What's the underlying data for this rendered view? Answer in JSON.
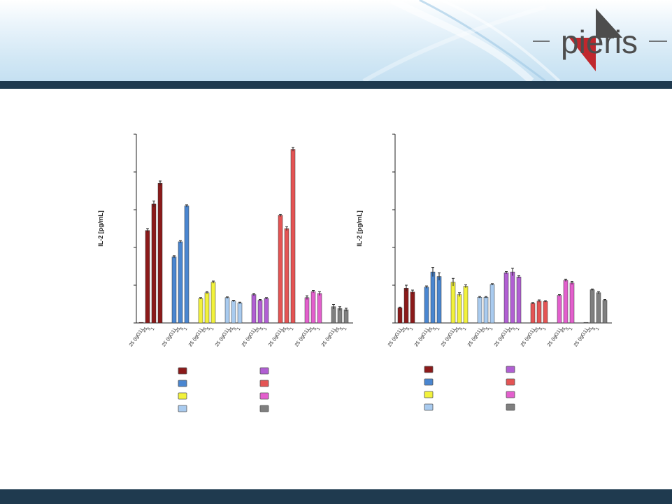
{
  "header": {
    "brand": "pieris",
    "colors": {
      "banner": "#d3e8f5",
      "dark_bar": "#1f3a4f",
      "logo_red": "#c0272d",
      "logo_gray": "#4d4d4d"
    }
  },
  "chart_data": [
    {
      "type": "bar",
      "title": "",
      "xlabel": "",
      "ylabel": "IL-2 [pg/mL]",
      "ylim": [
        0,
        5
      ],
      "y_ticks_labeled": false,
      "grid": false,
      "error_bars": true,
      "tick_label_groups": [
        "25 (IgG1)",
        "25 (IgG1)",
        "25 (IgG1)",
        "25 (IgG1)",
        "25 (IgG1)",
        "25 (IgG1)",
        "25 (IgG1)",
        "25 (IgG1)"
      ],
      "tick_label_sub": [
        "25",
        "5",
        "1",
        ".2",
        ".0 ",
        "8"
      ],
      "groups": [
        {
          "color": "#8b1a1a",
          "values": [
            0.0,
            2.45,
            3.15,
            3.7
          ],
          "errors": [
            0,
            0.05,
            0.08,
            0.06
          ]
        },
        {
          "color": "#4a86d0",
          "values": [
            1.75,
            2.15,
            3.1
          ],
          "errors": [
            0.03,
            0.03,
            0.03
          ]
        },
        {
          "color": "#f2f23c",
          "values": [
            0.65,
            0.8,
            1.08
          ],
          "errors": [
            0.02,
            0.03,
            0.03
          ]
        },
        {
          "color": "#a9cbef",
          "values": [
            0.67,
            0.58,
            0.53
          ],
          "errors": [
            0.02,
            0.02,
            0.02
          ]
        },
        {
          "color": "#b15fd3",
          "values": [
            0.75,
            0.6,
            0.65
          ],
          "errors": [
            0.03,
            0.02,
            0.02
          ]
        },
        {
          "color": "#e45454",
          "values": [
            2.85,
            2.5,
            4.6
          ],
          "errors": [
            0.03,
            0.05,
            0.05
          ]
        },
        {
          "color": "#e35fcd",
          "values": [
            0.67,
            0.83,
            0.78
          ],
          "errors": [
            0.05,
            0.03,
            0.05
          ]
        },
        {
          "color": "#7f7f7f",
          "values": [
            0.43,
            0.38,
            0.35
          ],
          "errors": [
            0.06,
            0.05,
            0.04
          ]
        }
      ],
      "legend_placement": "bottom, two columns"
    },
    {
      "type": "bar",
      "title": "",
      "xlabel": "",
      "ylabel": "IL-2 [pg/mL]",
      "ylim": [
        0,
        5
      ],
      "y_ticks_labeled": false,
      "grid": false,
      "error_bars": true,
      "tick_label_groups": [
        "25 (IgG1)",
        "25 (IgG1)",
        "25 (IgG1)",
        "25 (IgG1)",
        "25 (IgG1)",
        "25 (IgG1)",
        "25 (IgG1)",
        "25 (IgG1)"
      ],
      "tick_label_sub": [
        "25",
        "5",
        "1",
        ".2",
        ".0 ",
        "8"
      ],
      "groups": [
        {
          "color": "#8b1a1a",
          "values": [
            0.4,
            0.92,
            0.82
          ],
          "errors": [
            0.02,
            0.08,
            0.05
          ]
        },
        {
          "color": "#4a86d0",
          "values": [
            0.95,
            1.35,
            1.23
          ],
          "errors": [
            0.03,
            0.12,
            0.1
          ]
        },
        {
          "color": "#f2f23c",
          "values": [
            1.08,
            0.75,
            0.97
          ],
          "errors": [
            0.1,
            0.05,
            0.04
          ]
        },
        {
          "color": "#a9cbef",
          "values": [
            0.68,
            0.68,
            1.02
          ],
          "errors": [
            0.02,
            0.02,
            0.02
          ]
        },
        {
          "color": "#b15fd3",
          "values": [
            1.33,
            1.35,
            1.22
          ],
          "errors": [
            0.03,
            0.1,
            0.03
          ]
        },
        {
          "color": "#e45454",
          "values": [
            0.52,
            0.58,
            0.57
          ],
          "errors": [
            0.02,
            0.03,
            0.02
          ]
        },
        {
          "color": "#e35fcd",
          "values": [
            0.73,
            1.13,
            1.06
          ],
          "errors": [
            0.02,
            0.03,
            0.04
          ]
        },
        {
          "color": "#7f7f7f",
          "values": [
            0.0,
            0.88,
            0.8,
            0.6
          ],
          "errors": [
            0,
            0.02,
            0.03,
            0.02
          ]
        }
      ],
      "legend_placement": "bottom, two columns"
    }
  ],
  "legend": {
    "colors": [
      "#8b1a1a",
      "#4a86d0",
      "#f2f23c",
      "#a9cbef",
      "#b15fd3",
      "#e45454",
      "#e35fcd",
      "#7f7f7f"
    ]
  }
}
